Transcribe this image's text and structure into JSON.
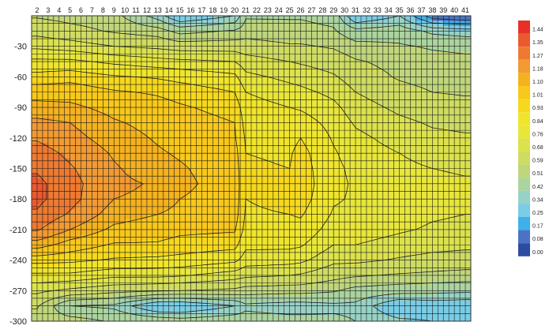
{
  "chart_data": {
    "type": "heatmap",
    "title": "",
    "xlabel": "",
    "ylabel": "",
    "x_ticks": [
      2,
      3,
      4,
      5,
      6,
      7,
      8,
      9,
      10,
      11,
      12,
      13,
      14,
      15,
      16,
      17,
      18,
      19,
      20,
      21,
      22,
      23,
      24,
      25,
      26,
      27,
      28,
      29,
      30,
      31,
      32,
      33,
      34,
      35,
      36,
      37,
      38,
      39,
      40,
      41
    ],
    "y_ticks": [
      -30,
      -60,
      -90,
      -120,
      -150,
      -180,
      -210,
      -240,
      -270,
      -300
    ],
    "xlim": [
      1.5,
      41.5
    ],
    "ylim": [
      0,
      -300
    ],
    "legend_levels": [
      "1.44",
      "1.35",
      "1.27",
      "1.18",
      "1.10",
      "1.01",
      "0.93",
      "0.84",
      "0.76",
      "0.68",
      "0.59",
      "0.51",
      "0.42",
      "0.34",
      "0.25",
      "0.17",
      "0.08",
      "0.00"
    ],
    "legend_colors": [
      "#e8302a",
      "#ea5a2e",
      "#ee7a32",
      "#f29a33",
      "#f5b21f",
      "#f8c81a",
      "#f6d81c",
      "#f0e52a",
      "#e8e63a",
      "#dce24c",
      "#cfdc62",
      "#bfd67c",
      "#abd49e",
      "#98d2c6",
      "#79cde6",
      "#3fb0ea",
      "#4a73c6",
      "#2e4ba3"
    ],
    "series": [
      {
        "depths": [
          0,
          -15,
          -30,
          -45,
          -60,
          -75,
          -90,
          -105,
          -120,
          -135,
          -150,
          -165,
          -180,
          -195,
          -210,
          -225,
          -240,
          -255,
          -270,
          -285,
          -300
        ]
      }
    ],
    "columns": [
      {
        "x": 2,
        "values": [
          0.58,
          0.65,
          0.74,
          0.86,
          0.96,
          1.06,
          1.13,
          1.2,
          1.26,
          1.31,
          1.34,
          1.37,
          1.37,
          1.34,
          1.28,
          1.14,
          0.96,
          0.82,
          0.7,
          0.6,
          0.55
        ]
      },
      {
        "x": 5,
        "values": [
          0.56,
          0.62,
          0.72,
          0.86,
          0.98,
          1.06,
          1.12,
          1.18,
          1.21,
          1.25,
          1.28,
          1.3,
          1.3,
          1.26,
          1.18,
          1.06,
          0.95,
          0.82,
          0.66,
          0.42,
          0.55
        ]
      },
      {
        "x": 9,
        "values": [
          0.54,
          0.58,
          0.68,
          0.82,
          0.94,
          1.02,
          1.07,
          1.11,
          1.14,
          1.17,
          1.19,
          1.2,
          1.18,
          1.14,
          1.08,
          1.0,
          0.92,
          0.78,
          0.62,
          0.4,
          0.5
        ]
      },
      {
        "x": 13,
        "values": [
          0.38,
          0.55,
          0.66,
          0.79,
          0.92,
          1.0,
          1.04,
          1.07,
          1.09,
          1.11,
          1.13,
          1.17,
          1.16,
          1.1,
          1.05,
          1.0,
          0.91,
          0.78,
          0.6,
          0.25,
          0.48
        ]
      },
      {
        "x": 15,
        "values": [
          0.25,
          0.48,
          0.64,
          0.78,
          0.9,
          0.98,
          1.02,
          1.05,
          1.07,
          1.09,
          1.11,
          1.12,
          1.1,
          1.07,
          1.03,
          0.98,
          0.9,
          0.77,
          0.59,
          0.25,
          0.46
        ]
      },
      {
        "x": 20,
        "values": [
          0.34,
          0.52,
          0.64,
          0.76,
          0.86,
          0.93,
          0.98,
          1.01,
          1.02,
          1.04,
          1.05,
          1.06,
          1.06,
          1.05,
          1.02,
          0.96,
          0.86,
          0.72,
          0.57,
          0.34,
          0.48
        ]
      },
      {
        "x": 21,
        "values": [
          0.5,
          0.55,
          0.63,
          0.72,
          0.78,
          0.84,
          0.88,
          0.9,
          0.92,
          0.93,
          0.94,
          0.94,
          0.93,
          0.92,
          0.9,
          0.86,
          0.8,
          0.7,
          0.55,
          0.4,
          0.46
        ]
      },
      {
        "x": 25,
        "values": [
          0.5,
          0.54,
          0.6,
          0.68,
          0.74,
          0.79,
          0.84,
          0.88,
          0.9,
          0.92,
          0.93,
          0.95,
          0.95,
          0.93,
          0.9,
          0.86,
          0.79,
          0.68,
          0.54,
          0.38,
          0.45
        ]
      },
      {
        "x": 26,
        "values": [
          0.5,
          0.54,
          0.6,
          0.67,
          0.73,
          0.78,
          0.83,
          0.88,
          0.93,
          0.96,
          0.97,
          0.98,
          0.97,
          0.94,
          0.9,
          0.85,
          0.78,
          0.67,
          0.54,
          0.38,
          0.45
        ]
      },
      {
        "x": 29,
        "values": [
          0.48,
          0.52,
          0.58,
          0.64,
          0.69,
          0.74,
          0.78,
          0.81,
          0.83,
          0.85,
          0.86,
          0.86,
          0.85,
          0.83,
          0.8,
          0.76,
          0.7,
          0.62,
          0.52,
          0.4,
          0.44
        ]
      },
      {
        "x": 31,
        "values": [
          0.25,
          0.45,
          0.54,
          0.6,
          0.64,
          0.68,
          0.72,
          0.75,
          0.78,
          0.8,
          0.82,
          0.83,
          0.83,
          0.82,
          0.8,
          0.76,
          0.7,
          0.6,
          0.48,
          0.4,
          0.42
        ]
      },
      {
        "x": 35,
        "values": [
          0.34,
          0.47,
          0.52,
          0.56,
          0.58,
          0.62,
          0.66,
          0.7,
          0.73,
          0.76,
          0.78,
          0.8,
          0.8,
          0.79,
          0.77,
          0.73,
          0.67,
          0.58,
          0.46,
          0.25,
          0.36
        ]
      },
      {
        "x": 38,
        "values": [
          0.12,
          0.4,
          0.5,
          0.54,
          0.56,
          0.59,
          0.63,
          0.67,
          0.7,
          0.73,
          0.76,
          0.78,
          0.78,
          0.77,
          0.75,
          0.71,
          0.65,
          0.57,
          0.45,
          0.28,
          0.34
        ]
      },
      {
        "x": 41,
        "values": [
          0.08,
          0.38,
          0.49,
          0.53,
          0.55,
          0.58,
          0.62,
          0.66,
          0.69,
          0.72,
          0.75,
          0.77,
          0.77,
          0.76,
          0.74,
          0.7,
          0.64,
          0.56,
          0.44,
          0.27,
          0.33
        ]
      }
    ],
    "grid": true,
    "legend_position": "right"
  }
}
